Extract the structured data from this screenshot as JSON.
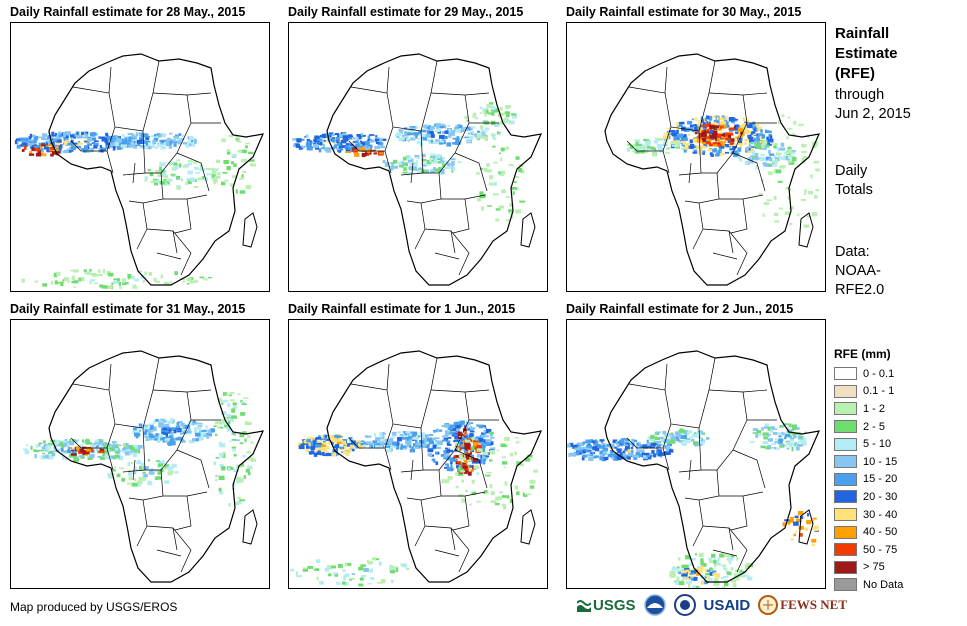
{
  "panels": [
    {
      "title": "Daily Rainfall estimate for 28 May., 2015"
    },
    {
      "title": "Daily Rainfall estimate for 29 May., 2015"
    },
    {
      "title": "Daily Rainfall estimate for 30 May., 2015"
    },
    {
      "title": "Daily Rainfall estimate for 31 May., 2015"
    },
    {
      "title": "Daily Rainfall estimate for 1 Jun., 2015"
    },
    {
      "title": "Daily Rainfall estimate for 2 Jun., 2015"
    }
  ],
  "side": {
    "title_line1": "Rainfall",
    "title_line2": "Estimate",
    "title_line3": "(RFE)",
    "through": "through",
    "date": "Jun 2, 2015",
    "daily1": "Daily",
    "daily2": "Totals",
    "data1": "Data:",
    "data2": "NOAA-",
    "data3": "RFE2.0"
  },
  "legend": {
    "title": "RFE (mm)",
    "items": [
      {
        "label": "0 - 0.1",
        "color": "#ffffff"
      },
      {
        "label": "0.1 - 1",
        "color": "#f1dfc3"
      },
      {
        "label": "1 - 2",
        "color": "#b9f0b0"
      },
      {
        "label": "2 - 5",
        "color": "#6fdc6f"
      },
      {
        "label": "5 - 10",
        "color": "#b3ecf5"
      },
      {
        "label": "10 - 15",
        "color": "#86c6f0"
      },
      {
        "label": "15 - 20",
        "color": "#4aa0ee"
      },
      {
        "label": "20 - 30",
        "color": "#2066e0"
      },
      {
        "label": "30 - 40",
        "color": "#ffe27a"
      },
      {
        "label": "40 - 50",
        "color": "#ffa000"
      },
      {
        "label": "50 - 75",
        "color": "#f03c00"
      },
      {
        "label": "> 75",
        "color": "#a01818"
      },
      {
        "label": "No Data",
        "color": "#9a9a9a"
      }
    ]
  },
  "credit": "Map produced by USGS/EROS",
  "logos": {
    "usgs": "USGS",
    "usaid": "USAID",
    "fews": "FEWS NET",
    "noaa": "NOAA"
  }
}
